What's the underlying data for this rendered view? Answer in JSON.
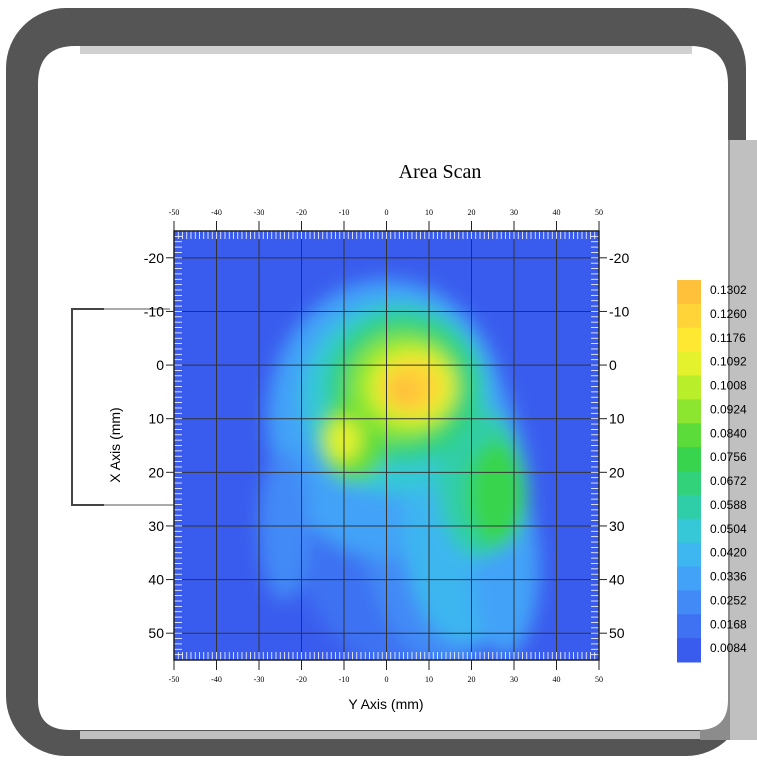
{
  "chart_data": {
    "type": "heatmap",
    "title": "Area Scan",
    "xlabel": "Y Axis (mm)",
    "ylabel": "X Axis (mm)",
    "top_ticks": [
      "-50",
      "-40",
      "-30",
      "-20",
      "-10",
      "0",
      "10",
      "20",
      "30",
      "40",
      "50"
    ],
    "bottom_ticks": [
      "-50",
      "-40",
      "-30",
      "-20",
      "-10",
      "0",
      "10",
      "20",
      "30",
      "40",
      "50"
    ],
    "left_ticks": [
      "-20",
      "-10",
      "0",
      "10",
      "20",
      "30",
      "40",
      "50"
    ],
    "right_ticks": [
      "-20",
      "-10",
      "0",
      "10",
      "20",
      "30",
      "40",
      "50"
    ],
    "xlim": [
      -50,
      50
    ],
    "ylim": [
      -25,
      55
    ],
    "grid": true,
    "colorbar": {
      "labels": [
        "0.1302",
        "0.1260",
        "0.1176",
        "0.1092",
        "0.1008",
        "0.0924",
        "0.0840",
        "0.0756",
        "0.0672",
        "0.0588",
        "0.0504",
        "0.0420",
        "0.0336",
        "0.0252",
        "0.0168",
        "0.0084"
      ],
      "colors": [
        "#ffc03a",
        "#ffd438",
        "#ffe832",
        "#e4f22e",
        "#b8ee2a",
        "#8ce630",
        "#5cdc3a",
        "#38d44e",
        "#32d27a",
        "#30cea8",
        "#36c8d6",
        "#3eb6f0",
        "#42a2f8",
        "#428af6",
        "#3e72f2",
        "#3a5cee"
      ]
    },
    "background_color": "#3a5cee",
    "peak": {
      "y_mm": 6,
      "x_mm": 4,
      "value": 0.1302
    }
  }
}
